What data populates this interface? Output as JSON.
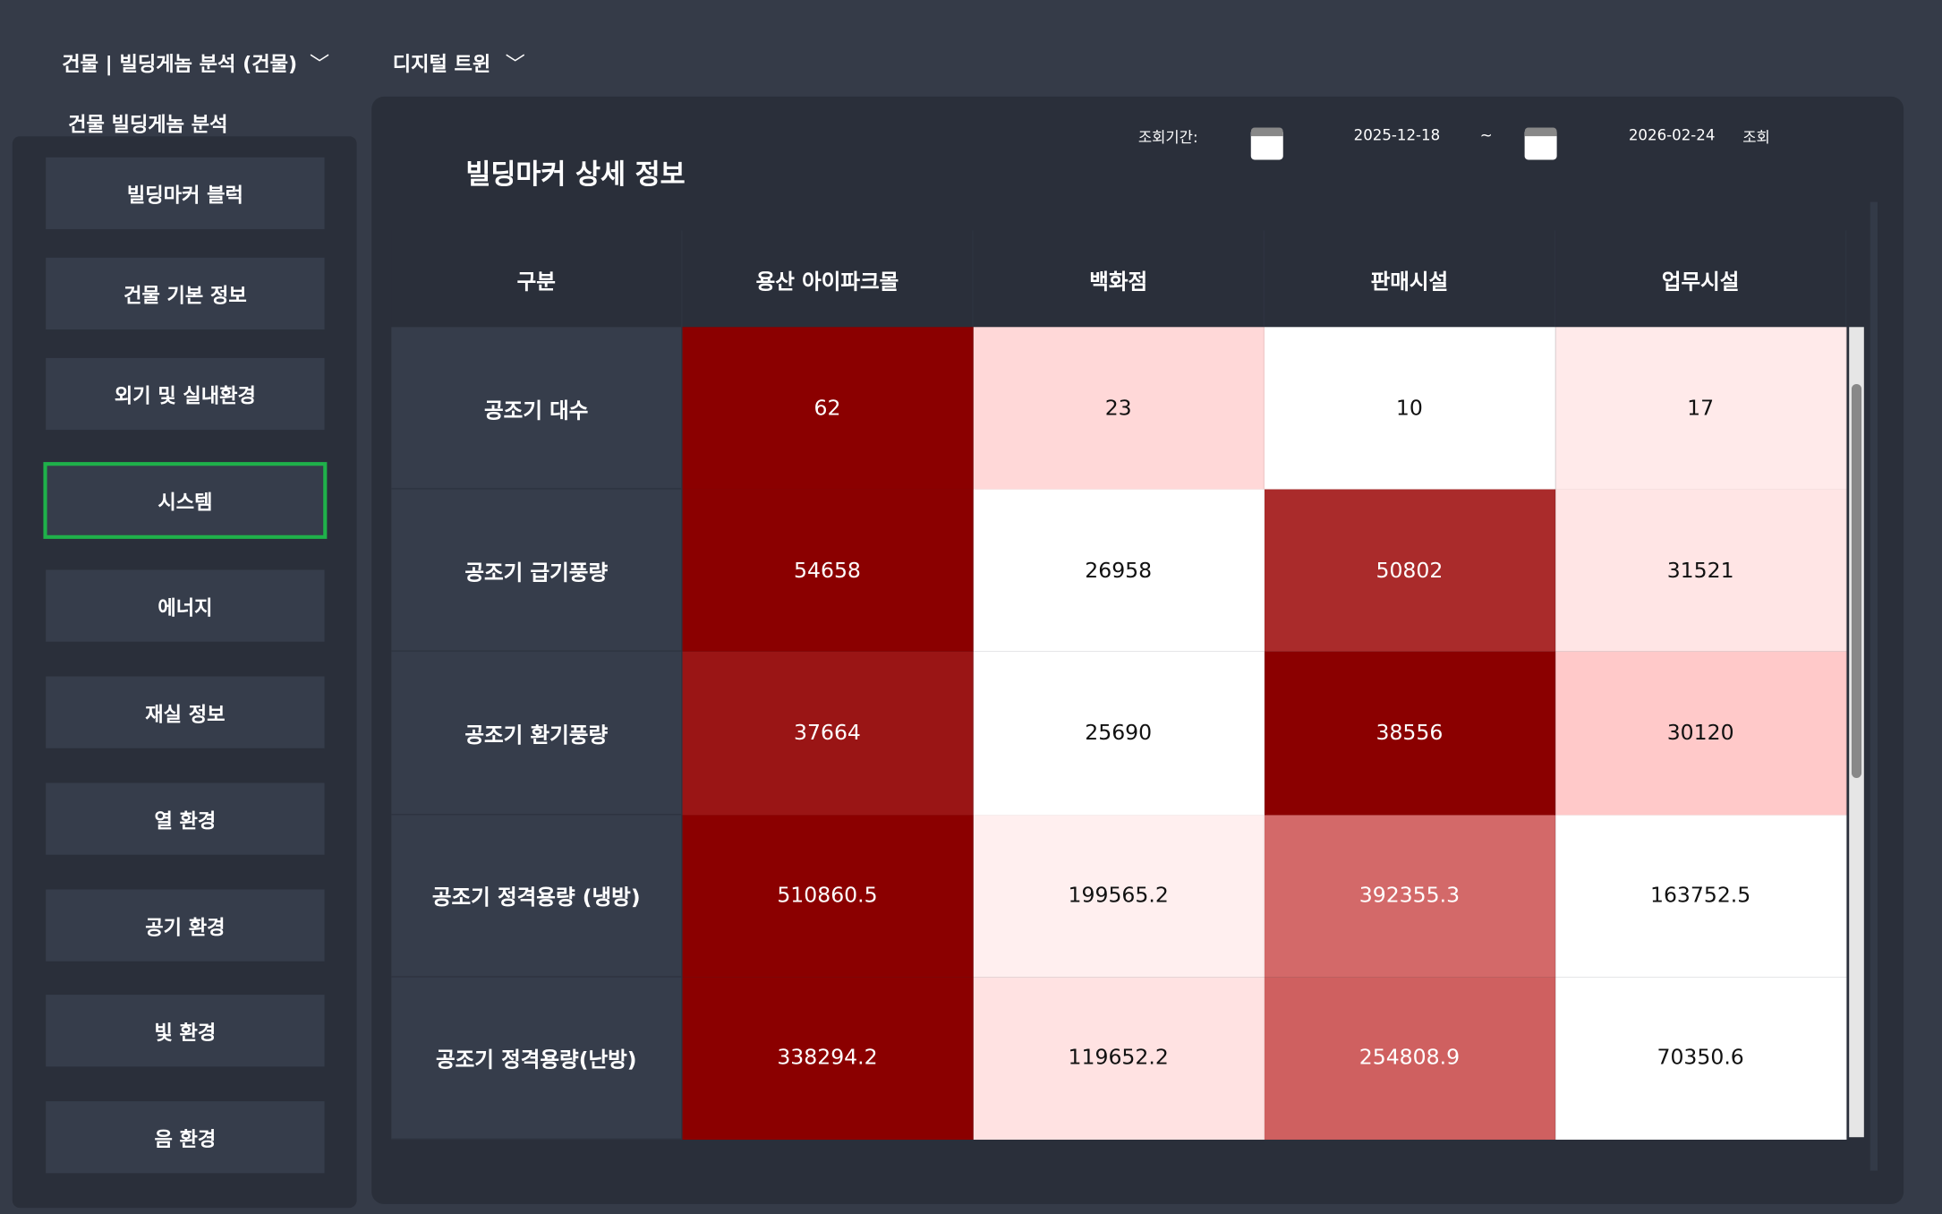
{
  "nav": {
    "breadcrumb": "건물 | 빌딩게놈 분석 (건물)",
    "twin": "디지털 트윈"
  },
  "sidebar": {
    "title": "건물 빌딩게놈 분석",
    "selected": 3,
    "items": [
      "빌딩마커 블럭",
      "건물 기본 정보",
      "외기 및 실내환경",
      "시스템",
      "에너지",
      "재실 정보",
      "열 환경",
      "공기 환경",
      "빛 환경",
      "음 환경"
    ]
  },
  "panel": {
    "title": "빌딩마커 상세 정보",
    "period_label": "조회기간:",
    "start": "2025-12-18",
    "separator": "~",
    "end": "2026-02-24",
    "search": "조회"
  },
  "table": {
    "header": [
      "구분",
      "용산 아이파크몰",
      "백화점",
      "판매시설",
      "업무시설"
    ],
    "rows": [
      {
        "label": "공조기 대수",
        "values": [
          62,
          23,
          10,
          17
        ]
      },
      {
        "label": "공조기 급기풍량",
        "values": [
          54658,
          26958,
          50802,
          31521
        ]
      },
      {
        "label": "공조기 환기풍량",
        "values": [
          37664,
          25690,
          38556,
          30120
        ]
      },
      {
        "label": "공조기 정격용량 (냉방)",
        "values": [
          510860.5,
          199565.2,
          392355.3,
          163752.5
        ]
      },
      {
        "label": "공조기 정격용량(난방)",
        "values": [
          338294.2,
          119652.2,
          254808.9,
          70350.6
        ]
      }
    ]
  }
}
